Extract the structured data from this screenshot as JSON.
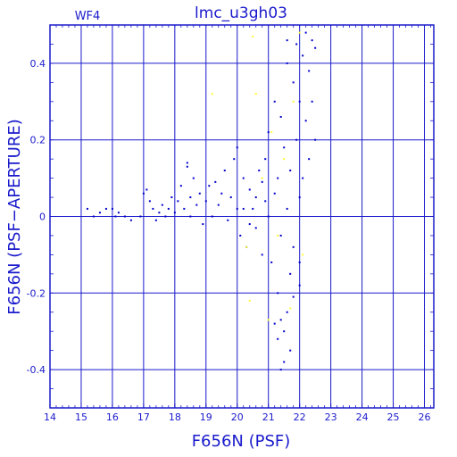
{
  "chart_data": {
    "type": "scatter",
    "title": "lmc_u3gh03",
    "corner_label": "WF4",
    "xlabel": "F656N (PSF)",
    "ylabel": "F656N (PSF−APERTURE)",
    "xlim": [
      14,
      26.3
    ],
    "ylim": [
      -0.5,
      0.5
    ],
    "x_ticks": [
      "14",
      "15",
      "16",
      "17",
      "18",
      "19",
      "20",
      "21",
      "22",
      "23",
      "24",
      "25",
      "26"
    ],
    "y_ticks": [
      "-0.4",
      "-0.2",
      "0",
      "0.2",
      "0.4"
    ],
    "grid": true,
    "colors": {
      "frame": "#1a1acc",
      "main_points": "#0000cc",
      "flagged_points": "#ffff33"
    },
    "series": [
      {
        "color": "#0000cc",
        "points": [
          [
            15.2,
            0.02
          ],
          [
            15.4,
            0.0
          ],
          [
            15.6,
            0.01
          ],
          [
            15.8,
            0.02
          ],
          [
            16.0,
            0.02
          ],
          [
            16.1,
            0.0
          ],
          [
            16.2,
            0.01
          ],
          [
            16.4,
            0.0
          ],
          [
            16.6,
            -0.01
          ],
          [
            16.9,
            0.0
          ],
          [
            17.0,
            0.06
          ],
          [
            17.1,
            0.07
          ],
          [
            17.2,
            0.04
          ],
          [
            17.3,
            0.02
          ],
          [
            17.4,
            -0.01
          ],
          [
            17.5,
            0.01
          ],
          [
            17.6,
            0.03
          ],
          [
            17.7,
            0.0
          ],
          [
            17.8,
            0.02
          ],
          [
            17.9,
            0.05
          ],
          [
            18.0,
            0.01
          ],
          [
            18.1,
            0.04
          ],
          [
            18.2,
            0.08
          ],
          [
            18.3,
            0.02
          ],
          [
            18.4,
            0.13
          ],
          [
            18.4,
            0.14
          ],
          [
            18.5,
            0.05
          ],
          [
            18.5,
            0.0
          ],
          [
            18.6,
            0.1
          ],
          [
            18.7,
            0.03
          ],
          [
            18.8,
            0.06
          ],
          [
            18.9,
            -0.02
          ],
          [
            19.0,
            0.04
          ],
          [
            19.1,
            0.08
          ],
          [
            19.2,
            0.0
          ],
          [
            19.3,
            0.09
          ],
          [
            19.4,
            0.03
          ],
          [
            19.5,
            0.06
          ],
          [
            19.6,
            0.12
          ],
          [
            19.7,
            -0.01
          ],
          [
            19.8,
            0.05
          ],
          [
            19.9,
            0.15
          ],
          [
            20.0,
            0.18
          ],
          [
            20.0,
            0.02
          ],
          [
            20.1,
            -0.05
          ],
          [
            20.2,
            0.1
          ],
          [
            20.3,
            -0.08
          ],
          [
            20.4,
            0.07
          ],
          [
            20.5,
            0.02
          ],
          [
            20.6,
            -0.03
          ],
          [
            20.7,
            0.12
          ],
          [
            20.8,
            -0.1
          ],
          [
            20.9,
            0.15
          ],
          [
            20.9,
            0.04
          ],
          [
            20.2,
            0.02
          ],
          [
            20.4,
            -0.02
          ],
          [
            20.6,
            0.05
          ],
          [
            20.8,
            0.09
          ],
          [
            21.0,
            0.0
          ],
          [
            21.0,
            0.22
          ],
          [
            21.1,
            -0.12
          ],
          [
            21.2,
            0.3
          ],
          [
            21.2,
            0.06
          ],
          [
            21.3,
            -0.2
          ],
          [
            21.3,
            0.1
          ],
          [
            21.4,
            0.26
          ],
          [
            21.4,
            -0.05
          ],
          [
            21.5,
            0.18
          ],
          [
            21.5,
            -0.3
          ],
          [
            21.6,
            0.02
          ],
          [
            21.6,
            0.4
          ],
          [
            21.7,
            -0.15
          ],
          [
            21.7,
            0.12
          ],
          [
            21.8,
            0.35
          ],
          [
            21.8,
            -0.08
          ],
          [
            21.9,
            0.2
          ],
          [
            21.9,
            0.45
          ],
          [
            22.0,
            0.05
          ],
          [
            22.0,
            -0.18
          ],
          [
            22.0,
            0.3
          ],
          [
            22.1,
            0.42
          ],
          [
            22.1,
            0.1
          ],
          [
            22.2,
            0.25
          ],
          [
            22.2,
            0.48
          ],
          [
            22.3,
            0.38
          ],
          [
            22.3,
            0.15
          ],
          [
            22.4,
            0.46
          ],
          [
            22.4,
            0.3
          ],
          [
            22.5,
            0.44
          ],
          [
            22.5,
            0.2
          ],
          [
            21.4,
            -0.4
          ],
          [
            21.5,
            -0.38
          ],
          [
            21.3,
            -0.32
          ],
          [
            21.6,
            -0.25
          ],
          [
            21.8,
            -0.21
          ],
          [
            22.0,
            -0.12
          ],
          [
            21.4,
            -0.27
          ],
          [
            21.7,
            -0.35
          ],
          [
            21.2,
            -0.28
          ],
          [
            21.6,
            0.46
          ]
        ]
      },
      {
        "color": "#ffff33",
        "points": [
          [
            19.2,
            0.32
          ],
          [
            20.3,
            -0.08
          ],
          [
            20.6,
            0.32
          ],
          [
            20.5,
            0.47
          ],
          [
            20.8,
            0.1
          ],
          [
            21.0,
            -0.27
          ],
          [
            21.1,
            0.22
          ],
          [
            21.3,
            -0.05
          ],
          [
            21.5,
            0.15
          ],
          [
            21.7,
            -0.24
          ],
          [
            21.8,
            0.3
          ],
          [
            22.0,
            0.48
          ],
          [
            22.1,
            -0.1
          ],
          [
            20.4,
            -0.22
          ]
        ]
      }
    ]
  }
}
